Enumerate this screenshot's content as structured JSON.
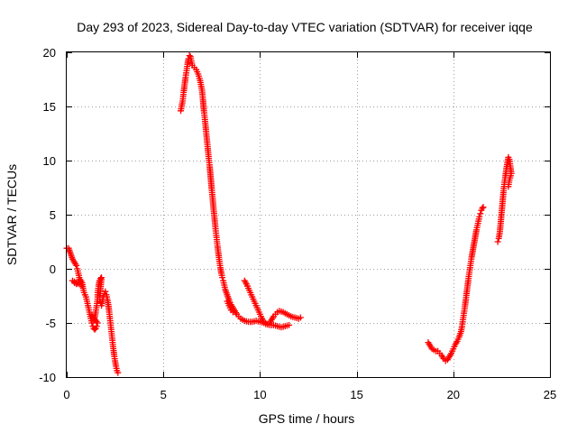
{
  "chart_data": {
    "type": "scatter",
    "title": "Day 293 of 2023, Sidereal Day-to-day VTEC variation (SDTVAR) for receiver iqqe",
    "xlabel": "GPS time / hours",
    "ylabel": "SDTVAR / TECUs",
    "xlim": [
      0,
      25
    ],
    "ylim": [
      -10,
      20
    ],
    "xticks": [
      0,
      5,
      10,
      15,
      20,
      25
    ],
    "yticks": [
      -10,
      -5,
      0,
      5,
      10,
      15,
      20
    ],
    "grid": true,
    "marker": "+",
    "color": "#ff0000",
    "series": [
      {
        "name": "SDTVAR",
        "points": [
          [
            0.0,
            1.9
          ],
          [
            0.1,
            1.9
          ],
          [
            0.3,
            0.9
          ],
          [
            0.4,
            0.6
          ],
          [
            0.5,
            0.3
          ],
          [
            0.55,
            0.0
          ],
          [
            0.6,
            -0.4
          ],
          [
            0.65,
            -0.8
          ],
          [
            0.7,
            -1.2
          ],
          [
            0.75,
            -1.5
          ],
          [
            0.3,
            -1.1
          ],
          [
            0.4,
            -1.3
          ],
          [
            0.5,
            -1.4
          ],
          [
            0.6,
            -1.2
          ],
          [
            0.7,
            -1.0
          ],
          [
            0.8,
            -1.3
          ],
          [
            0.85,
            -1.8
          ],
          [
            0.9,
            -2.2
          ],
          [
            1.0,
            -2.6
          ],
          [
            1.05,
            -3.0
          ],
          [
            1.1,
            -3.4
          ],
          [
            1.15,
            -3.8
          ],
          [
            1.2,
            -4.2
          ],
          [
            1.25,
            -4.6
          ],
          [
            1.3,
            -5.0
          ],
          [
            1.35,
            -5.3
          ],
          [
            1.4,
            -5.5
          ],
          [
            1.45,
            -5.6
          ],
          [
            1.5,
            -5.5
          ],
          [
            1.55,
            -5.3
          ],
          [
            1.6,
            -5.0
          ],
          [
            1.3,
            -4.3
          ],
          [
            1.35,
            -4.6
          ],
          [
            1.4,
            -4.8
          ],
          [
            1.45,
            -4.5
          ],
          [
            1.5,
            -4.0
          ],
          [
            1.55,
            -3.4
          ],
          [
            1.6,
            -2.8
          ],
          [
            1.6,
            -2.2
          ],
          [
            1.65,
            -1.6
          ],
          [
            1.7,
            -1.1
          ],
          [
            1.75,
            -0.9
          ],
          [
            1.8,
            -0.8
          ],
          [
            1.7,
            -2.8
          ],
          [
            1.75,
            -3.1
          ],
          [
            1.8,
            -3.4
          ],
          [
            1.85,
            -3.0
          ],
          [
            1.9,
            -2.6
          ],
          [
            1.95,
            -2.3
          ],
          [
            2.0,
            -2.1
          ],
          [
            2.05,
            -2.4
          ],
          [
            2.1,
            -2.8
          ],
          [
            2.15,
            -3.3
          ],
          [
            2.2,
            -4.0
          ],
          [
            2.25,
            -4.8
          ],
          [
            2.3,
            -5.6
          ],
          [
            2.35,
            -6.4
          ],
          [
            2.4,
            -7.2
          ],
          [
            2.45,
            -7.9
          ],
          [
            2.5,
            -8.5
          ],
          [
            2.55,
            -9.0
          ],
          [
            2.6,
            -9.4
          ],
          [
            2.65,
            -9.6
          ],
          [
            5.9,
            14.6
          ],
          [
            6.0,
            15.5
          ],
          [
            6.05,
            16.3
          ],
          [
            6.1,
            17.0
          ],
          [
            6.15,
            17.7
          ],
          [
            6.2,
            18.3
          ],
          [
            6.25,
            18.9
          ],
          [
            6.3,
            19.4
          ],
          [
            6.35,
            19.7
          ],
          [
            6.4,
            19.6
          ],
          [
            6.45,
            19.2
          ],
          [
            6.5,
            18.8
          ],
          [
            6.6,
            18.6
          ],
          [
            6.7,
            18.4
          ],
          [
            6.8,
            18.0
          ],
          [
            6.9,
            17.4
          ],
          [
            7.0,
            16.5
          ],
          [
            7.05,
            15.6
          ],
          [
            7.1,
            14.6
          ],
          [
            7.15,
            13.8
          ],
          [
            7.2,
            12.9
          ],
          [
            7.25,
            12.0
          ],
          [
            7.3,
            11.1
          ],
          [
            7.35,
            10.2
          ],
          [
            7.4,
            9.4
          ],
          [
            7.45,
            8.4
          ],
          [
            7.5,
            7.4
          ],
          [
            7.55,
            6.5
          ],
          [
            7.6,
            5.5
          ],
          [
            7.65,
            4.6
          ],
          [
            7.7,
            3.7
          ],
          [
            7.75,
            2.9
          ],
          [
            7.8,
            2.1
          ],
          [
            7.85,
            1.4
          ],
          [
            7.9,
            0.7
          ],
          [
            7.95,
            0.1
          ],
          [
            8.0,
            -0.4
          ],
          [
            8.05,
            -0.8
          ],
          [
            8.1,
            -1.1
          ],
          [
            8.15,
            -1.5
          ],
          [
            8.2,
            -1.9
          ],
          [
            8.3,
            -2.4
          ],
          [
            8.4,
            -2.9
          ],
          [
            8.5,
            -3.3
          ],
          [
            8.6,
            -3.6
          ],
          [
            8.7,
            -3.9
          ],
          [
            8.8,
            -4.2
          ],
          [
            8.9,
            -4.4
          ],
          [
            9.0,
            -4.6
          ],
          [
            9.2,
            -4.8
          ],
          [
            9.4,
            -4.9
          ],
          [
            9.6,
            -4.9
          ],
          [
            9.8,
            -4.8
          ],
          [
            10.0,
            -4.9
          ],
          [
            10.2,
            -5.0
          ],
          [
            10.4,
            -5.1
          ],
          [
            10.5,
            -5.0
          ],
          [
            10.6,
            -4.7
          ],
          [
            10.7,
            -4.4
          ],
          [
            10.8,
            -4.2
          ],
          [
            10.9,
            -4.0
          ],
          [
            11.0,
            -3.9
          ],
          [
            11.2,
            -4.0
          ],
          [
            11.4,
            -4.2
          ],
          [
            11.6,
            -4.4
          ],
          [
            11.8,
            -4.5
          ],
          [
            12.0,
            -4.6
          ],
          [
            12.1,
            -4.5
          ],
          [
            8.3,
            -3.0
          ],
          [
            8.4,
            -3.4
          ],
          [
            8.5,
            -3.8
          ],
          [
            8.6,
            -4.0
          ],
          [
            9.2,
            -1.1
          ],
          [
            9.3,
            -1.4
          ],
          [
            9.4,
            -1.8
          ],
          [
            9.5,
            -2.2
          ],
          [
            9.6,
            -2.6
          ],
          [
            9.7,
            -3.0
          ],
          [
            9.8,
            -3.4
          ],
          [
            9.9,
            -3.8
          ],
          [
            10.0,
            -4.2
          ],
          [
            10.1,
            -4.6
          ],
          [
            10.2,
            -4.9
          ],
          [
            10.3,
            -5.1
          ],
          [
            10.5,
            -5.2
          ],
          [
            10.7,
            -5.2
          ],
          [
            10.9,
            -5.3
          ],
          [
            11.1,
            -5.4
          ],
          [
            11.3,
            -5.3
          ],
          [
            11.5,
            -5.2
          ],
          [
            18.7,
            -6.8
          ],
          [
            18.8,
            -7.1
          ],
          [
            18.9,
            -7.4
          ],
          [
            19.0,
            -7.5
          ],
          [
            19.1,
            -7.6
          ],
          [
            19.2,
            -7.6
          ],
          [
            19.3,
            -7.8
          ],
          [
            19.4,
            -8.0
          ],
          [
            19.5,
            -8.3
          ],
          [
            19.6,
            -8.5
          ],
          [
            19.7,
            -8.4
          ],
          [
            19.8,
            -8.1
          ],
          [
            19.9,
            -7.8
          ],
          [
            20.0,
            -7.4
          ],
          [
            20.1,
            -7.0
          ],
          [
            20.2,
            -6.7
          ],
          [
            20.3,
            -6.3
          ],
          [
            20.4,
            -5.8
          ],
          [
            20.45,
            -5.3
          ],
          [
            20.5,
            -4.7
          ],
          [
            20.55,
            -4.1
          ],
          [
            20.6,
            -3.5
          ],
          [
            20.65,
            -2.8
          ],
          [
            20.7,
            -2.1
          ],
          [
            20.75,
            -1.4
          ],
          [
            20.8,
            -0.7
          ],
          [
            20.85,
            -0.1
          ],
          [
            20.9,
            0.5
          ],
          [
            20.95,
            1.1
          ],
          [
            21.0,
            1.6
          ],
          [
            21.05,
            2.1
          ],
          [
            21.1,
            2.6
          ],
          [
            21.15,
            3.1
          ],
          [
            21.2,
            3.6
          ],
          [
            21.25,
            4.0
          ],
          [
            21.3,
            4.4
          ],
          [
            21.35,
            4.8
          ],
          [
            21.4,
            5.1
          ],
          [
            21.45,
            5.4
          ],
          [
            21.5,
            5.6
          ],
          [
            21.55,
            5.7
          ],
          [
            22.3,
            2.5
          ],
          [
            22.35,
            2.8
          ],
          [
            22.4,
            3.3
          ],
          [
            22.45,
            4.2
          ],
          [
            22.5,
            5.2
          ],
          [
            22.55,
            6.2
          ],
          [
            22.6,
            7.2
          ],
          [
            22.65,
            8.0
          ],
          [
            22.7,
            8.6
          ],
          [
            22.75,
            9.3
          ],
          [
            22.8,
            9.8
          ],
          [
            22.85,
            10.3
          ],
          [
            22.9,
            10.1
          ],
          [
            22.95,
            9.5
          ],
          [
            23.0,
            8.8
          ],
          [
            22.9,
            8.2
          ],
          [
            22.85,
            7.6
          ]
        ]
      }
    ]
  }
}
